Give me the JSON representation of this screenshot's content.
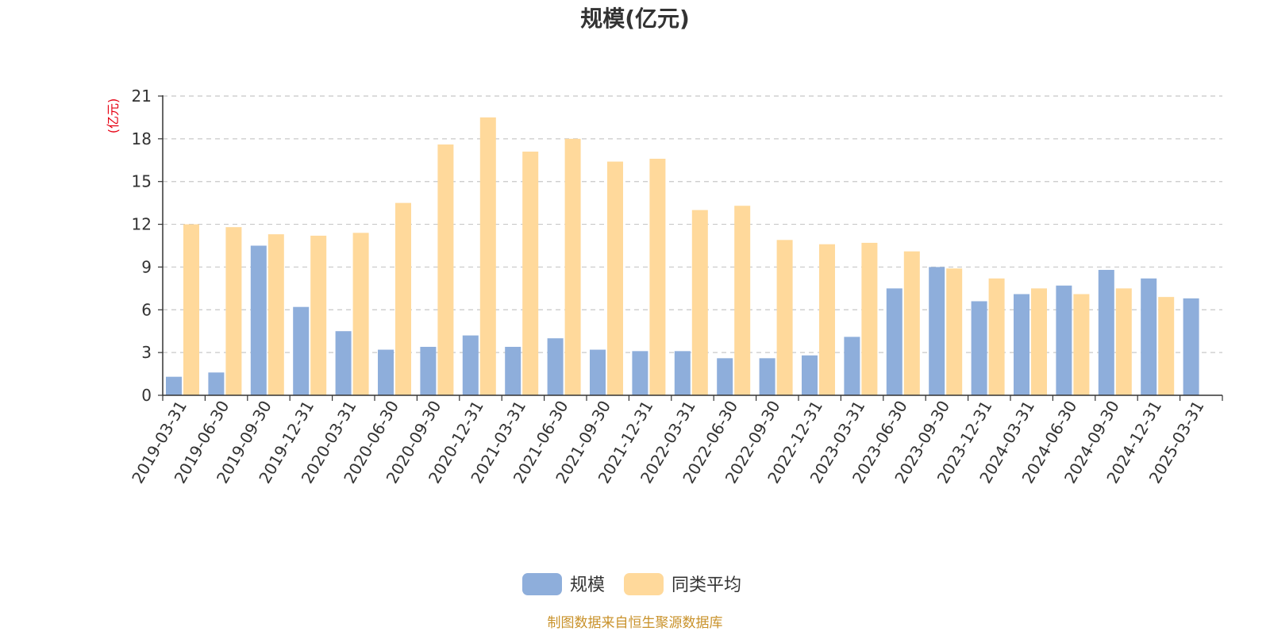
{
  "colors": {
    "series_scale": "#8eaedb",
    "series_avg": "#ffd99b",
    "axis": "#333333",
    "grid": "#c8c8c8",
    "unit": "#e60012",
    "source": "#c9922b"
  },
  "chart_data": {
    "type": "bar",
    "title": "规模(亿元)",
    "ylabel": "(亿元)",
    "xlabel": "",
    "ylim": [
      0,
      21
    ],
    "yticks": [
      0,
      3,
      6,
      9,
      12,
      15,
      18,
      21
    ],
    "grid": true,
    "legend_position": "bottom-center",
    "categories": [
      "2019-03-31",
      "2019-06-30",
      "2019-09-30",
      "2019-12-31",
      "2020-03-31",
      "2020-06-30",
      "2020-09-30",
      "2020-12-31",
      "2021-03-31",
      "2021-06-30",
      "2021-09-30",
      "2021-12-31",
      "2022-03-31",
      "2022-06-30",
      "2022-09-30",
      "2022-12-31",
      "2023-03-31",
      "2023-06-30",
      "2023-09-30",
      "2023-12-31",
      "2024-03-31",
      "2024-06-30",
      "2024-09-30",
      "2024-12-31",
      "2025-03-31"
    ],
    "series": [
      {
        "name": "规模",
        "values": [
          1.3,
          1.6,
          10.5,
          6.2,
          4.5,
          3.2,
          3.4,
          4.2,
          3.4,
          4.0,
          3.2,
          3.1,
          3.1,
          2.6,
          2.6,
          2.8,
          4.1,
          7.5,
          9.0,
          6.6,
          7.1,
          7.7,
          8.8,
          8.2,
          6.8
        ]
      },
      {
        "name": "同类平均",
        "values": [
          12.0,
          11.8,
          11.3,
          11.2,
          11.4,
          13.5,
          17.6,
          19.5,
          17.1,
          18.0,
          16.4,
          16.6,
          13.0,
          13.3,
          10.9,
          10.6,
          10.7,
          10.1,
          8.9,
          8.2,
          7.5,
          7.1,
          7.5,
          6.9,
          null
        ]
      }
    ],
    "source_note": "制图数据来自恒生聚源数据库"
  }
}
